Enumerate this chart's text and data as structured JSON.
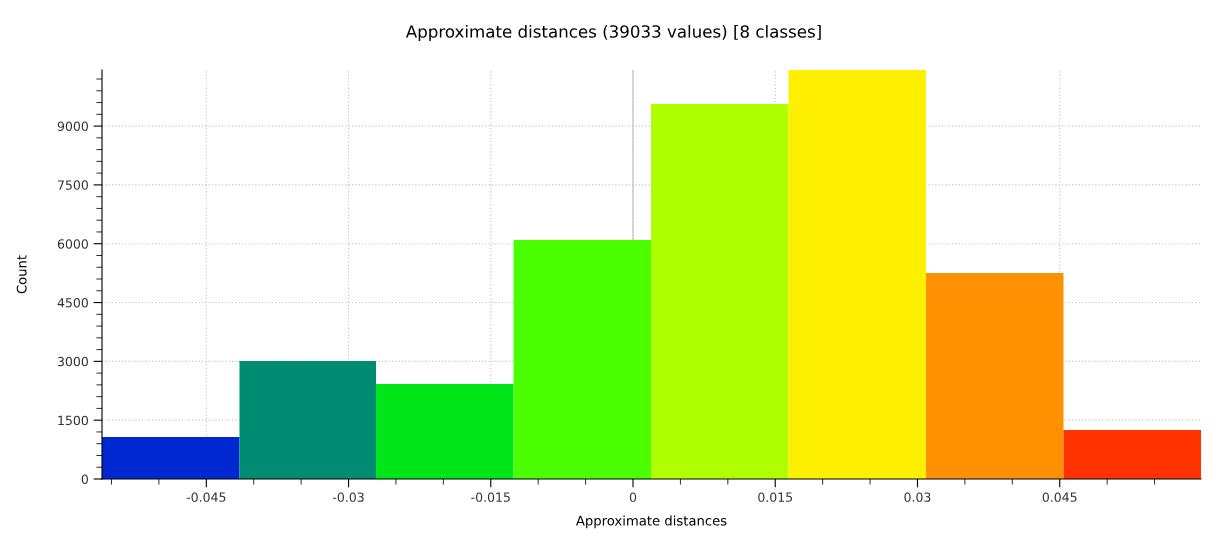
{
  "chart_data": {
    "type": "histogram",
    "title": "Approximate distances (39033 values) [8 classes]",
    "xlabel": "Approximate distances",
    "ylabel": "Count",
    "bins": [
      -0.056,
      -0.0415,
      -0.0271,
      -0.0126,
      0.0019,
      0.0164,
      0.0309,
      0.0454,
      0.0599
    ],
    "values": [
      1071,
      3009,
      2422,
      6094,
      9562,
      10430,
      5252,
      1249
    ],
    "colors": [
      "#0028d2",
      "#008c73",
      "#00e619",
      "#4bff00",
      "#afff00",
      "#fff000",
      "#ff9100",
      "#ff3200"
    ],
    "xlim": [
      -0.056,
      0.0599
    ],
    "ylim": [
      0,
      10430
    ],
    "xticks": [
      {
        "value": -0.055,
        "label": null
      },
      {
        "value": -0.05,
        "label": null
      },
      -0.045,
      {
        "value": -0.04,
        "label": null
      },
      {
        "value": -0.035,
        "label": null
      },
      -0.03,
      {
        "value": -0.025,
        "label": null
      },
      {
        "value": -0.02,
        "label": null
      },
      -0.015,
      {
        "value": -0.01,
        "label": null
      },
      {
        "value": -0.005,
        "label": null
      },
      0,
      {
        "value": 0.005,
        "label": null
      },
      {
        "value": 0.01,
        "label": null
      },
      0.015,
      {
        "value": 0.02,
        "label": null
      },
      {
        "value": 0.025,
        "label": null
      },
      0.03,
      {
        "value": 0.035,
        "label": null
      },
      {
        "value": 0.04,
        "label": null
      },
      0.045,
      {
        "value": 0.05,
        "label": null
      },
      {
        "value": 0.055,
        "label": null
      }
    ],
    "yticks": [
      0,
      {
        "value": 300,
        "label": null
      },
      {
        "value": 600,
        "label": null
      },
      {
        "value": 900,
        "label": null
      },
      {
        "value": 1200,
        "label": null
      },
      1500,
      {
        "value": 1800,
        "label": null
      },
      {
        "value": 2100,
        "label": null
      },
      {
        "value": 2400,
        "label": null
      },
      {
        "value": 2700,
        "label": null
      },
      3000,
      {
        "value": 3300,
        "label": null
      },
      {
        "value": 3600,
        "label": null
      },
      {
        "value": 3900,
        "label": null
      },
      {
        "value": 4200,
        "label": null
      },
      4500,
      {
        "value": 4800,
        "label": null
      },
      {
        "value": 5100,
        "label": null
      },
      {
        "value": 5400,
        "label": null
      },
      {
        "value": 5700,
        "label": null
      },
      6000,
      {
        "value": 6300,
        "label": null
      },
      {
        "value": 6600,
        "label": null
      },
      {
        "value": 6900,
        "label": null
      },
      {
        "value": 7200,
        "label": null
      },
      7500,
      {
        "value": 7800,
        "label": null
      },
      {
        "value": 8100,
        "label": null
      },
      {
        "value": 8400,
        "label": null
      },
      {
        "value": 8700,
        "label": null
      },
      9000,
      {
        "value": 9300,
        "label": null
      },
      {
        "value": 9600,
        "label": null
      },
      {
        "value": 9900,
        "label": null
      },
      {
        "value": 10200,
        "label": null
      }
    ],
    "grid": true,
    "ref_lines": [
      {
        "axis": "x",
        "value": 0,
        "label": null,
        "color": "#c8c8c8"
      }
    ]
  }
}
